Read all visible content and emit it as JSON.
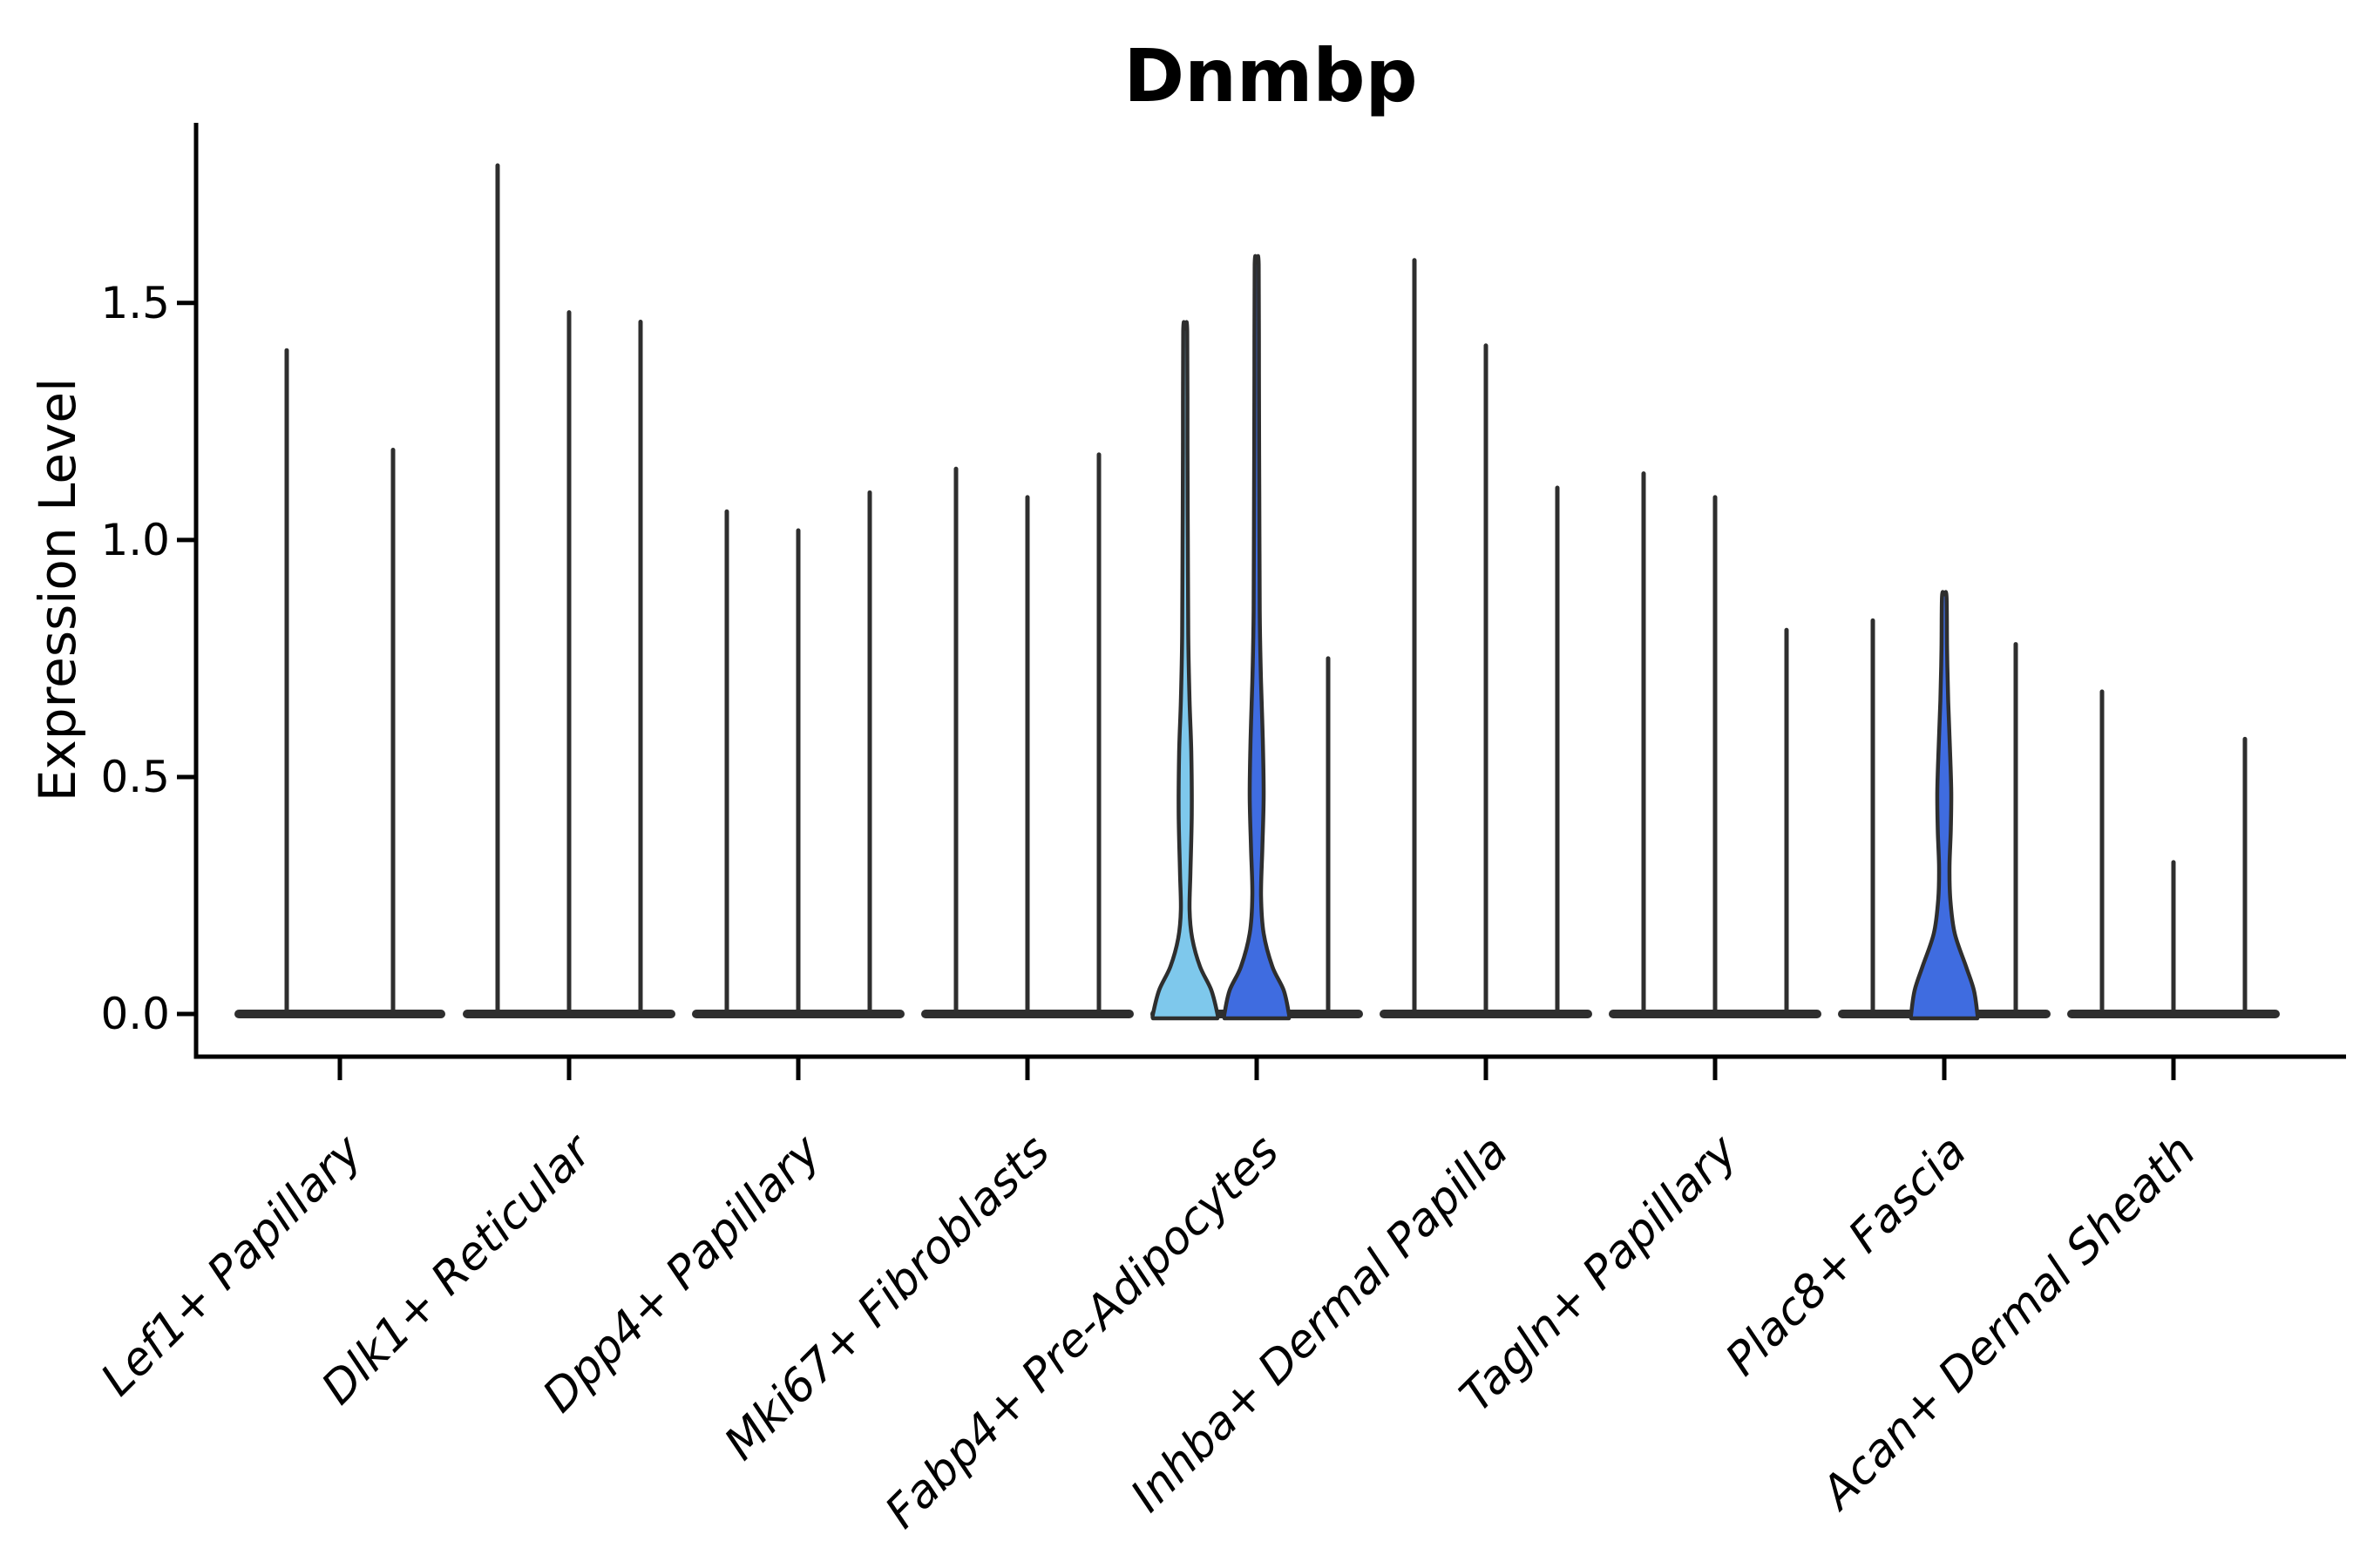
{
  "figure": {
    "title": "Dnmbp",
    "ylabel": "Expression Level"
  },
  "chart_data": {
    "type": "violin",
    "title": "Dnmbp",
    "xlabel": "",
    "ylabel": "Expression Level",
    "ylim": [
      -0.09,
      1.88
    ],
    "grid": false,
    "legend": null,
    "yticks": [
      {
        "value": 0.0,
        "label": "0.0"
      },
      {
        "value": 0.5,
        "label": "0.5"
      },
      {
        "value": 1.0,
        "label": "1.0"
      },
      {
        "value": 1.5,
        "label": "1.5"
      }
    ],
    "colors": {
      "violin_dark": "#2e2e2e",
      "violin_outline": "#2e2e2e",
      "highlight_light_blue": "#7ec8ec",
      "highlight_royal_blue": "#3f6ce0",
      "axis": "#000000",
      "text": "#000000",
      "background": "#ffffff"
    },
    "groups": [
      {
        "label": "Lef1+ Papillary",
        "violins": [
          {
            "max": 1.4,
            "style": "plain"
          },
          {
            "max": 1.19,
            "style": "plain"
          }
        ]
      },
      {
        "label": "Dlk1+ Reticular",
        "violins": [
          {
            "max": 1.79,
            "style": "plain"
          },
          {
            "max": 1.48,
            "style": "plain"
          },
          {
            "max": 1.46,
            "style": "plain"
          }
        ]
      },
      {
        "label": "Dpp4+ Papillary",
        "violins": [
          {
            "max": 1.06,
            "style": "plain"
          },
          {
            "max": 1.02,
            "style": "plain"
          },
          {
            "max": 1.1,
            "style": "plain"
          }
        ]
      },
      {
        "label": "Mki67+ Fibroblasts",
        "violins": [
          {
            "max": 1.15,
            "style": "plain"
          },
          {
            "max": 1.09,
            "style": "plain"
          },
          {
            "max": 1.18,
            "style": "plain"
          }
        ]
      },
      {
        "label": "Fabp4+ Pre-Adipocytes",
        "violins": [
          {
            "max": 1.44,
            "style": "highlight_light_blue",
            "profile": [
              [
                0,
                37
              ],
              [
                0.05,
                30
              ],
              [
                0.1,
                17
              ],
              [
                0.16,
                8
              ],
              [
                0.22,
                5
              ],
              [
                0.3,
                6
              ],
              [
                0.42,
                7.5
              ],
              [
                0.55,
                7
              ],
              [
                0.66,
                5
              ],
              [
                0.8,
                3.5
              ],
              [
                1.0,
                3
              ],
              [
                1.2,
                2.6
              ],
              [
                1.44,
                2.3
              ]
            ]
          },
          {
            "max": 1.58,
            "style": "highlight_royal_blue",
            "profile": [
              [
                0,
                37
              ],
              [
                0.05,
                31
              ],
              [
                0.1,
                18
              ],
              [
                0.17,
                8
              ],
              [
                0.25,
                5
              ],
              [
                0.35,
                6.5
              ],
              [
                0.46,
                8
              ],
              [
                0.58,
                7
              ],
              [
                0.7,
                5
              ],
              [
                0.85,
                3.5
              ],
              [
                1.1,
                3
              ],
              [
                1.35,
                2.6
              ],
              [
                1.58,
                2.3
              ]
            ]
          },
          {
            "max": 0.75,
            "style": "plain"
          }
        ]
      },
      {
        "label": "Inhba+ Dermal Papilla",
        "violins": [
          {
            "max": 1.59,
            "style": "plain"
          },
          {
            "max": 1.41,
            "style": "plain"
          },
          {
            "max": 1.11,
            "style": "plain"
          }
        ]
      },
      {
        "label": "Tagln+ Papillary",
        "violins": [
          {
            "max": 1.14,
            "style": "plain"
          },
          {
            "max": 1.09,
            "style": "plain"
          },
          {
            "max": 0.81,
            "style": "plain"
          }
        ]
      },
      {
        "label": "Plac8+ Fascia",
        "violins": [
          {
            "max": 0.83,
            "style": "plain"
          },
          {
            "max": 0.88,
            "style": "highlight_royal_blue",
            "profile": [
              [
                0,
                38
              ],
              [
                0.05,
                34
              ],
              [
                0.1,
                25
              ],
              [
                0.17,
                12
              ],
              [
                0.24,
                7
              ],
              [
                0.31,
                6
              ],
              [
                0.39,
                7.5
              ],
              [
                0.47,
                8
              ],
              [
                0.56,
                6.5
              ],
              [
                0.66,
                4.5
              ],
              [
                0.77,
                3.2
              ],
              [
                0.88,
                2.6
              ]
            ]
          },
          {
            "max": 0.78,
            "style": "plain"
          }
        ]
      },
      {
        "label": "Acan+ Dermal Sheath",
        "violins": [
          {
            "max": 0.68,
            "style": "plain"
          },
          {
            "max": 0.32,
            "style": "plain"
          },
          {
            "max": 0.58,
            "style": "plain"
          }
        ]
      }
    ]
  }
}
